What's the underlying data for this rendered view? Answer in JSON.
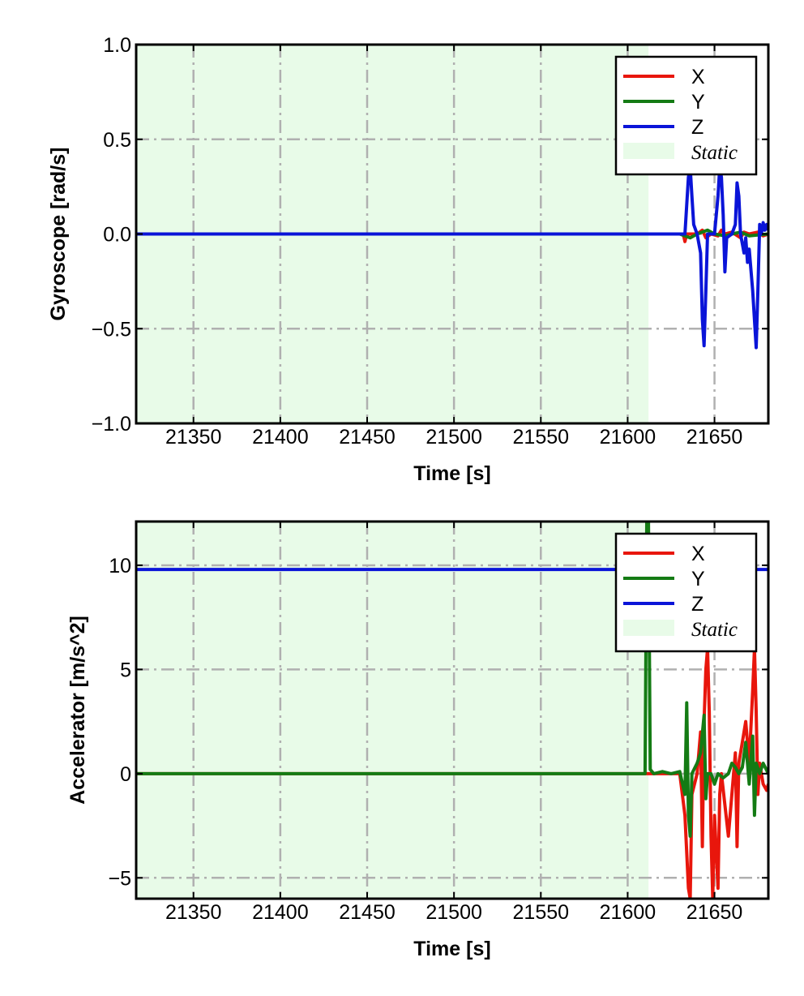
{
  "chart_data": [
    {
      "type": "line",
      "xlabel": "Time [s]",
      "ylabel": "Gyroscope [rad/s]",
      "xlim": [
        21317,
        21681
      ],
      "ylim": [
        -1.0,
        1.0
      ],
      "xticks": [
        21350,
        21400,
        21450,
        21500,
        21550,
        21600,
        21650
      ],
      "xtick_labels": [
        "21350",
        "21400",
        "21450",
        "21500",
        "21550",
        "21600",
        "21650"
      ],
      "yticks": [
        -1.0,
        -0.5,
        0.0,
        0.5,
        1.0
      ],
      "ytick_labels": [
        "−1.0",
        "−0.5",
        "0.0",
        "0.5",
        "1.0"
      ],
      "grid": true,
      "legend_position": "top-right",
      "static_region": {
        "label": "Static",
        "x0": 21317,
        "x1": 21612,
        "color": "#e8fbe8"
      },
      "series": [
        {
          "name": "X",
          "color": "#e8160c",
          "points": [
            [
              21317,
              0
            ],
            [
              21612,
              0
            ],
            [
              21632,
              0.0
            ],
            [
              21633,
              -0.04
            ],
            [
              21634,
              0.0
            ],
            [
              21640,
              0.0
            ],
            [
              21643,
              0.02
            ],
            [
              21645,
              -0.02
            ],
            [
              21648,
              0.0
            ],
            [
              21652,
              -0.01
            ],
            [
              21654,
              0.02
            ],
            [
              21656,
              0.0
            ],
            [
              21660,
              0.01
            ],
            [
              21665,
              -0.02
            ],
            [
              21667,
              0.01
            ],
            [
              21670,
              0.0
            ],
            [
              21675,
              0.01
            ],
            [
              21678,
              -0.01
            ],
            [
              21681,
              0.0
            ]
          ]
        },
        {
          "name": "Y",
          "color": "#147b14",
          "points": [
            [
              21317,
              0
            ],
            [
              21612,
              0
            ],
            [
              21630,
              0.0
            ],
            [
              21636,
              -0.02
            ],
            [
              21640,
              0.0
            ],
            [
              21646,
              0.02
            ],
            [
              21650,
              0.0
            ],
            [
              21656,
              -0.01
            ],
            [
              21660,
              0.0
            ],
            [
              21665,
              0.01
            ],
            [
              21670,
              -0.01
            ],
            [
              21681,
              0.0
            ]
          ]
        },
        {
          "name": "Z",
          "color": "#0a14d8",
          "points": [
            [
              21317,
              0
            ],
            [
              21612,
              0
            ],
            [
              21620,
              0.0
            ],
            [
              21633,
              0.0
            ],
            [
              21635,
              0.3
            ],
            [
              21636,
              0.35
            ],
            [
              21637,
              0.2
            ],
            [
              21638,
              0.05
            ],
            [
              21640,
              0.0
            ],
            [
              21642,
              -0.1
            ],
            [
              21643,
              -0.45
            ],
            [
              21644,
              -0.59
            ],
            [
              21645,
              -0.3
            ],
            [
              21646,
              0.0
            ],
            [
              21650,
              0.0
            ],
            [
              21652,
              0.2
            ],
            [
              21653,
              0.35
            ],
            [
              21654,
              0.3
            ],
            [
              21655,
              0.1
            ],
            [
              21656,
              -0.2
            ],
            [
              21657,
              -0.02
            ],
            [
              21660,
              0.0
            ],
            [
              21662,
              0.05
            ],
            [
              21663,
              0.27
            ],
            [
              21664,
              0.2
            ],
            [
              21665,
              0.0
            ],
            [
              21667,
              -0.1
            ],
            [
              21668,
              -0.02
            ],
            [
              21669,
              -0.15
            ],
            [
              21670,
              -0.08
            ],
            [
              21672,
              -0.3
            ],
            [
              21674,
              -0.6
            ],
            [
              21675,
              -0.3
            ],
            [
              21676,
              0.05
            ],
            [
              21677,
              0.0
            ],
            [
              21678,
              0.06
            ],
            [
              21679,
              0.02
            ],
            [
              21680,
              0.05
            ],
            [
              21681,
              0.02
            ]
          ]
        }
      ],
      "legend": [
        {
          "label": "X",
          "color": "#e8160c",
          "kind": "line"
        },
        {
          "label": "Y",
          "color": "#147b14",
          "kind": "line"
        },
        {
          "label": "Z",
          "color": "#0a14d8",
          "kind": "line"
        },
        {
          "label": "Static",
          "color": "#e8fbe8",
          "kind": "patch"
        }
      ]
    },
    {
      "type": "line",
      "xlabel": "Time [s]",
      "ylabel": "Accelerator [m/s^2]",
      "xlim": [
        21317,
        21681
      ],
      "ylim": [
        -6.0,
        12.1
      ],
      "xticks": [
        21350,
        21400,
        21450,
        21500,
        21550,
        21600,
        21650
      ],
      "xtick_labels": [
        "21350",
        "21400",
        "21450",
        "21500",
        "21550",
        "21600",
        "21650"
      ],
      "yticks": [
        -5,
        0,
        5,
        10
      ],
      "ytick_labels": [
        "−5",
        "0",
        "5",
        "10"
      ],
      "grid": true,
      "legend_position": "top-right",
      "static_region": {
        "label": "Static",
        "x0": 21317,
        "x1": 21612,
        "color": "#e8fbe8"
      },
      "series": [
        {
          "name": "X",
          "color": "#e8160c",
          "points": [
            [
              21317,
              0
            ],
            [
              21612,
              0
            ],
            [
              21630,
              0.0
            ],
            [
              21633,
              -2.0
            ],
            [
              21635,
              -5.5
            ],
            [
              21636,
              -6.0
            ],
            [
              21637,
              -1.0
            ],
            [
              21640,
              0.0
            ],
            [
              21642,
              2.0
            ],
            [
              21643,
              -3.5
            ],
            [
              21644,
              2.5
            ],
            [
              21645,
              5.0
            ],
            [
              21646,
              6.0
            ],
            [
              21647,
              3.0
            ],
            [
              21648,
              -3.0
            ],
            [
              21649,
              -6.0
            ],
            [
              21650,
              -2.0
            ],
            [
              21652,
              -5.5
            ],
            [
              21653,
              -1.0
            ],
            [
              21654,
              0.0
            ],
            [
              21656,
              -1.5
            ],
            [
              21658,
              -3.0
            ],
            [
              21660,
              -1.0
            ],
            [
              21662,
              1.0
            ],
            [
              21663,
              -3.5
            ],
            [
              21664,
              0.5
            ],
            [
              21666,
              1.5
            ],
            [
              21668,
              2.5
            ],
            [
              21670,
              0.5
            ],
            [
              21672,
              4.0
            ],
            [
              21673,
              6.0
            ],
            [
              21674,
              3.0
            ],
            [
              21675,
              -1.0
            ],
            [
              21676,
              0.5
            ],
            [
              21678,
              -0.5
            ],
            [
              21680,
              -0.8
            ],
            [
              21681,
              -0.5
            ]
          ]
        },
        {
          "name": "Y",
          "color": "#147b14",
          "points": [
            [
              21317,
              0
            ],
            [
              21610,
              0
            ],
            [
              21611,
              12.1
            ],
            [
              21612,
              12.1
            ],
            [
              21613,
              0.2
            ],
            [
              21615,
              0.0
            ],
            [
              21620,
              0.1
            ],
            [
              21625,
              0.0
            ],
            [
              21630,
              0.1
            ],
            [
              21633,
              -1.0
            ],
            [
              21634,
              3.4
            ],
            [
              21635,
              -2.0
            ],
            [
              21636,
              -3.0
            ],
            [
              21637,
              0.0
            ],
            [
              21640,
              0.5
            ],
            [
              21642,
              1.0
            ],
            [
              21644,
              2.8
            ],
            [
              21645,
              -1.2
            ],
            [
              21646,
              0.0
            ],
            [
              21648,
              0.0
            ],
            [
              21650,
              -0.5
            ],
            [
              21652,
              0.0
            ],
            [
              21655,
              -0.2
            ],
            [
              21658,
              0.0
            ],
            [
              21660,
              0.5
            ],
            [
              21662,
              0.3
            ],
            [
              21664,
              0.0
            ],
            [
              21666,
              0.3
            ],
            [
              21668,
              1.5
            ],
            [
              21670,
              -0.5
            ],
            [
              21672,
              1.8
            ],
            [
              21673,
              -2.0
            ],
            [
              21674,
              0.5
            ],
            [
              21676,
              0.0
            ],
            [
              21678,
              0.5
            ],
            [
              21681,
              0.0
            ]
          ]
        },
        {
          "name": "Z",
          "color": "#0a14d8",
          "points": [
            [
              21317,
              9.8
            ],
            [
              21612,
              9.8
            ],
            [
              21681,
              9.8
            ]
          ]
        }
      ],
      "legend": [
        {
          "label": "X",
          "color": "#e8160c",
          "kind": "line"
        },
        {
          "label": "Y",
          "color": "#147b14",
          "kind": "line"
        },
        {
          "label": "Z",
          "color": "#0a14d8",
          "kind": "line"
        },
        {
          "label": "Static",
          "color": "#e8fbe8",
          "kind": "patch"
        }
      ]
    }
  ]
}
